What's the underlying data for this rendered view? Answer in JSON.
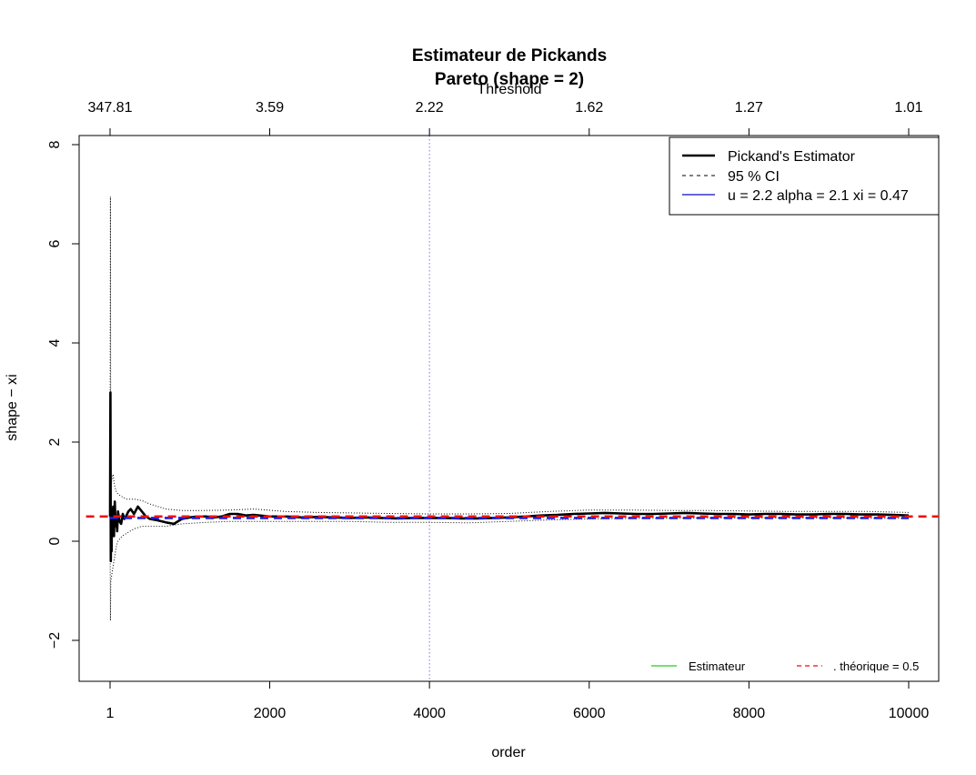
{
  "chart_data": {
    "type": "line",
    "title": "Estimateur de Pickands",
    "subtitle": "Pareto (shape = 2)",
    "xlabel": "order",
    "ylabel": "shape  − xi",
    "top_axis_label": "Threshold",
    "xlim": [
      1,
      10000
    ],
    "ylim": [
      -2.8,
      8.2
    ],
    "x_ticks": [
      1,
      2000,
      4000,
      6000,
      8000,
      10000
    ],
    "x_tick_labels": [
      "1",
      "2000",
      "4000",
      "6000",
      "8000",
      "10000"
    ],
    "y_ticks": [
      -2,
      0,
      2,
      4,
      6,
      8
    ],
    "y_tick_labels": [
      "−2",
      "0",
      "2",
      "4",
      "6",
      "8"
    ],
    "top_ticks_at_order": [
      1,
      2000,
      4000,
      6000,
      8000,
      10000
    ],
    "top_tick_labels": [
      "347.81",
      "3.59",
      "2.22",
      "1.62",
      "1.27",
      "1.01"
    ],
    "vertical_line": {
      "x": 4000,
      "color": "#7777ee"
    },
    "legend_main": {
      "position": "top-right",
      "entries": [
        {
          "label": "Pickand's Estimator",
          "style": "solid",
          "color": "#000000"
        },
        {
          "label": "95 % CI",
          "style": "dashed",
          "color": "#000000"
        },
        {
          "label": "u = 2.2 alpha = 2.1 xi = 0.47",
          "style": "solid",
          "color": "#3333cc"
        }
      ]
    },
    "legend_secondary": {
      "position": "bottom-right",
      "entries": [
        {
          "label": "Estimateur",
          "style": "solid",
          "color": "#22cc22"
        },
        {
          "label": ". théorique = 0.5",
          "style": "dashed",
          "color": "#ff0000"
        }
      ]
    },
    "series": [
      {
        "name": "Pickand's Estimator",
        "color": "#000000",
        "style": "solid-thick",
        "x": [
          1,
          5,
          10,
          15,
          20,
          25,
          30,
          40,
          50,
          60,
          70,
          80,
          90,
          100,
          120,
          140,
          160,
          180,
          200,
          230,
          260,
          300,
          350,
          400,
          450,
          500,
          600,
          700,
          800,
          900,
          1000,
          1100,
          1200,
          1300,
          1400,
          1500,
          1600,
          1700,
          1800,
          2000,
          2200,
          2400,
          2600,
          2800,
          3000,
          3200,
          3400,
          3600,
          3800,
          4000,
          4200,
          4400,
          4600,
          4800,
          5000,
          5200,
          5400,
          5600,
          5800,
          6000,
          6200,
          6400,
          6600,
          6800,
          7000,
          7200,
          7400,
          7600,
          7800,
          8000,
          8200,
          8400,
          8600,
          8800,
          9000,
          9200,
          9400,
          9600,
          9800,
          10000
        ],
        "y": [
          0.5,
          3.0,
          -0.4,
          0.3,
          -0.2,
          0.6,
          0.2,
          0.7,
          0.1,
          0.8,
          0.3,
          0.5,
          0.2,
          0.6,
          0.4,
          0.35,
          0.55,
          0.45,
          0.5,
          0.6,
          0.65,
          0.55,
          0.7,
          0.6,
          0.5,
          0.45,
          0.42,
          0.38,
          0.35,
          0.45,
          0.48,
          0.5,
          0.5,
          0.48,
          0.5,
          0.55,
          0.55,
          0.52,
          0.53,
          0.5,
          0.5,
          0.48,
          0.49,
          0.48,
          0.47,
          0.48,
          0.47,
          0.46,
          0.47,
          0.47,
          0.47,
          0.46,
          0.46,
          0.47,
          0.48,
          0.5,
          0.52,
          0.53,
          0.55,
          0.56,
          0.57,
          0.56,
          0.55,
          0.55,
          0.56,
          0.57,
          0.56,
          0.55,
          0.55,
          0.54,
          0.55,
          0.55,
          0.54,
          0.54,
          0.55,
          0.55,
          0.54,
          0.54,
          0.53,
          0.52
        ]
      },
      {
        "name": "95 % CI",
        "color": "#000000",
        "style": "dotted",
        "x": [
          1,
          5,
          10,
          20,
          30,
          40,
          50,
          60,
          80,
          100,
          150,
          200,
          300,
          400,
          500,
          700,
          900,
          1200,
          1500,
          1800,
          2200,
          2600,
          3000,
          3500,
          4000,
          4500,
          5000,
          5500,
          6000,
          6500,
          7000,
          7500,
          8000,
          8500,
          9000,
          9500,
          10000
        ],
        "y": [
          0.9,
          6.95,
          1.1,
          1.2,
          1.3,
          1.35,
          1.2,
          1.1,
          1.0,
          0.95,
          0.9,
          0.85,
          0.85,
          0.82,
          0.75,
          0.65,
          0.62,
          0.62,
          0.63,
          0.65,
          0.6,
          0.58,
          0.57,
          0.56,
          0.55,
          0.55,
          0.56,
          0.6,
          0.63,
          0.63,
          0.62,
          0.62,
          0.61,
          0.6,
          0.6,
          0.6,
          0.58
        ]
      },
      {
        "name": "95 % CI",
        "color": "#000000",
        "style": "dotted",
        "x": [
          1,
          5,
          10,
          20,
          30,
          40,
          50,
          60,
          80,
          100,
          150,
          200,
          300,
          400,
          500,
          700,
          900,
          1200,
          1500,
          1800,
          2200,
          2600,
          3000,
          3500,
          4000,
          4500,
          5000,
          5500,
          6000,
          6500,
          7000,
          7500,
          8000,
          8500,
          9000,
          9500,
          10000
        ],
        "y": [
          0.1,
          -1.6,
          -0.8,
          -0.7,
          -0.6,
          -0.5,
          -0.4,
          -0.3,
          -0.1,
          0.0,
          0.1,
          0.15,
          0.25,
          0.3,
          0.3,
          0.3,
          0.35,
          0.38,
          0.4,
          0.4,
          0.4,
          0.4,
          0.4,
          0.38,
          0.38,
          0.37,
          0.4,
          0.43,
          0.45,
          0.46,
          0.46,
          0.47,
          0.47,
          0.47,
          0.47,
          0.46,
          0.46
        ]
      },
      {
        "name": "u = 2.2 alpha = 2.1 xi = 0.47",
        "color": "#1a1aee",
        "style": "dashed-thick",
        "x": [
          1,
          10000
        ],
        "y": [
          0.47,
          0.47
        ]
      },
      {
        "name": ". théorique = 0.5",
        "color": "#ee1111",
        "style": "dashed-thick",
        "x": [
          -300,
          10400
        ],
        "y": [
          0.5,
          0.5
        ]
      }
    ]
  }
}
